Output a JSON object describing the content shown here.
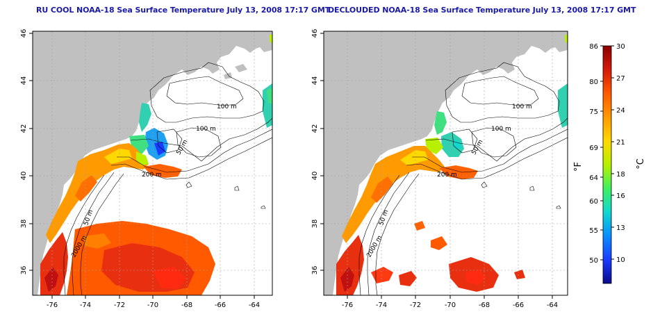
{
  "panels": [
    {
      "title": "RU COOL NOAA-18 Sea Surface Temperature July 13, 2008 17:17 GMT",
      "x_ticks": [
        "-76",
        "-74",
        "-72",
        "-70",
        "-68",
        "-66",
        "-64"
      ],
      "y_ticks": [
        "36",
        "38",
        "40",
        "42",
        "44",
        "46"
      ],
      "contour_labels": [
        "100 m",
        "100 m",
        "50 m",
        "200 m",
        "50 m",
        "2000 m"
      ]
    },
    {
      "title": "DECLOUDED NOAA-18 Sea Surface Temperature July 13, 2008 17:17 GMT",
      "x_ticks": [
        "-76",
        "-74",
        "-72",
        "-70",
        "-68",
        "-66",
        "-64"
      ],
      "y_ticks": [
        "36",
        "38",
        "40",
        "42",
        "44",
        "46"
      ],
      "contour_labels": [
        "100 m",
        "100 m",
        "50 m",
        "200 m",
        "50 m",
        "2000 m"
      ]
    }
  ],
  "colorbar": {
    "f_ticks": [
      "86",
      "80",
      "75",
      "69",
      "64",
      "60",
      "55",
      "50"
    ],
    "c_ticks": [
      "30",
      "27",
      "24",
      "21",
      "18",
      "16",
      "13",
      "10"
    ],
    "f_label": "°F",
    "c_label": "°C",
    "colors": [
      "#8b0000",
      "#d41a0a",
      "#ff5a00",
      "#ff9a00",
      "#ffd800",
      "#b8f000",
      "#40f060",
      "#10d8d0",
      "#0a8cff",
      "#1a3cff",
      "#0a0a8a"
    ]
  },
  "colors": {
    "land": "#c0c0c0",
    "title": "#1a1aa6",
    "grid": "#a0a0a0"
  }
}
